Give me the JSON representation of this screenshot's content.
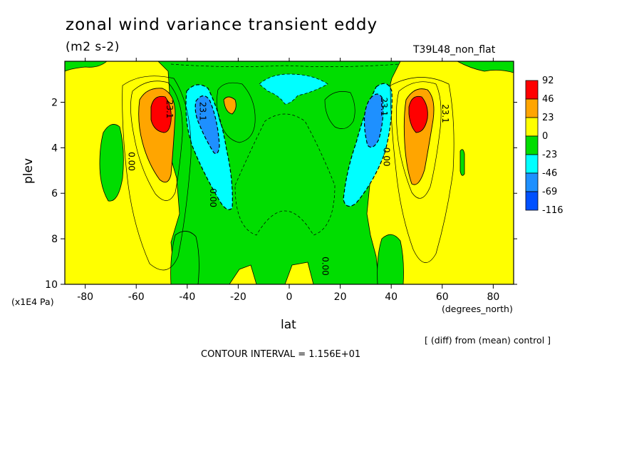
{
  "chart_data": {
    "type": "heatmap",
    "title": "zonal wind variance transient eddy",
    "units_label": "(m2 s-2)",
    "run_label": "T39L48_non_flat",
    "xlabel": "lat",
    "x_unit_label": "(degrees_north)",
    "ylabel": "plev",
    "y_unit_label": "(x1E4 Pa)",
    "annotation": "[ (diff) from (mean) control ]",
    "contour_interval_label": "CONTOUR INTERVAL = 1.156E+01",
    "xlim": [
      -88,
      88
    ],
    "ylim": [
      10,
      0.2
    ],
    "x_ticks": [
      -80,
      -60,
      -40,
      -20,
      0,
      20,
      40,
      60,
      80
    ],
    "x_tick_labels": [
      "-80",
      "-60",
      "-40",
      "-20",
      "0",
      "20",
      "40",
      "60",
      "80"
    ],
    "y_ticks": [
      2,
      4,
      6,
      8,
      10
    ],
    "y_tick_labels": [
      "2",
      "4",
      "6",
      "8",
      "10"
    ],
    "colorbar": {
      "labels": [
        "92",
        "46",
        "23",
        "0",
        "-23",
        "-46",
        "-69",
        "-116"
      ],
      "colors": [
        "#ff0000",
        "#ffa500",
        "#ffff00",
        "#00dd00",
        "#00ffff",
        "#1e90ff",
        "#0050ff"
      ]
    },
    "contour_labels": [
      {
        "text": "23.1",
        "x": -48,
        "y": 2.3
      },
      {
        "text": "23.1",
        "x": -35,
        "y": 2.4
      },
      {
        "text": "0.00",
        "x": -63,
        "y": 4.6
      },
      {
        "text": "0.00",
        "x": -31,
        "y": 6.2
      },
      {
        "text": "23.1",
        "x": 36,
        "y": 2.2
      },
      {
        "text": "0.00",
        "x": 37,
        "y": 4.4
      },
      {
        "text": "23.1",
        "x": 60,
        "y": 2.5
      },
      {
        "text": "0.00",
        "x": 13,
        "y": 9.2
      }
    ],
    "features": [
      {
        "sign": "positive",
        "lat": -51,
        "plev": 2.8,
        "peak_band": "92"
      },
      {
        "sign": "positive",
        "lat": 50,
        "plev": 2.7,
        "peak_band": "92"
      },
      {
        "sign": "negative",
        "lat": -33,
        "plev": 3.2,
        "peak_band": "-69"
      },
      {
        "sign": "negative",
        "lat": 34,
        "plev": 3.0,
        "peak_band": "-69"
      },
      {
        "sign": "positive",
        "lat": -23,
        "plev": 2.1,
        "peak_band": "46"
      },
      {
        "sign": "positive",
        "lat": 22,
        "plev": 2.1,
        "peak_band": "23"
      },
      {
        "sign": "negative",
        "lat": 0,
        "plev": 1.2,
        "peak_band": "-23"
      }
    ]
  }
}
